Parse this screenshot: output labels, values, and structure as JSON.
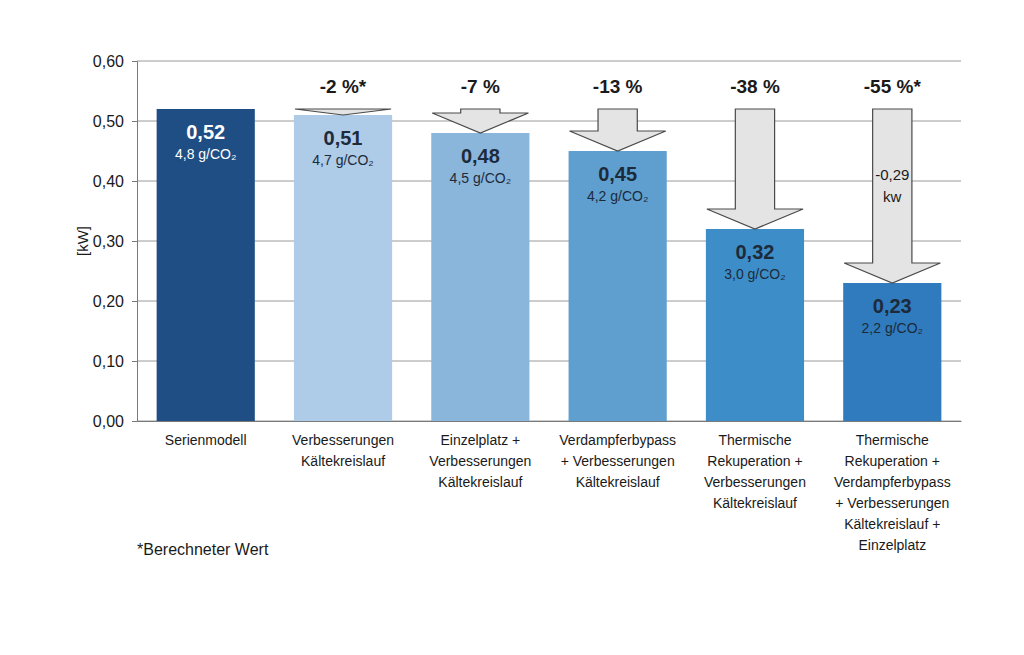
{
  "chart_data": {
    "type": "bar",
    "y_label": "[kW]",
    "categories": [
      "Serienmodell",
      "Verbesserungen\nKältekreislauf",
      "Einzelplatz +\nVerbesserungen\nKältekreislauf",
      "Verdampferbypass\n+ Verbesserungen\nKältekreislauf",
      "Thermische\nRekuperation +\nVerbesserungen\nKältekreislauf",
      "Thermische\nRekuperation +\nVerdampferbypass\n+ Verbesserungen\nKältekreislauf +\nEinzelplatz"
    ],
    "values": [
      0.52,
      0.51,
      0.48,
      0.45,
      0.32,
      0.23
    ],
    "value_labels": [
      "0,52",
      "0,51",
      "0,48",
      "0,45",
      "0,32",
      "0,23"
    ],
    "co2_labels": [
      "4,8 g/CO₂",
      "4,7 g/CO₂",
      "4,5 g/CO₂",
      "4,2 g/CO₂",
      "3,0 g/CO₂",
      "2,2 g/CO₂"
    ],
    "change_labels": [
      null,
      "-2 %*",
      "-7 %",
      "-13 %",
      "-38 %",
      "-55 %*"
    ],
    "difference_label": "-0,29 kw",
    "footnote": "*Berechneter Wert",
    "colors": [
      "#1f4e85",
      "#aecbe8",
      "#8ab6dc",
      "#5e9fcf",
      "#3d8ec8",
      "#2f7bbd"
    ],
    "ylim": [
      0,
      0.6
    ],
    "yticks": [
      {
        "value": 0,
        "label": "0,00"
      },
      {
        "value": 0.1,
        "label": "0,10"
      },
      {
        "value": 0.2,
        "label": "0,20"
      },
      {
        "value": 0.3,
        "label": "0,30"
      },
      {
        "value": 0.4,
        "label": "0,40"
      },
      {
        "value": 0.5,
        "label": "0,50"
      },
      {
        "value": 0.6,
        "label": "0,60"
      }
    ],
    "grid": true,
    "data_labels": true
  }
}
